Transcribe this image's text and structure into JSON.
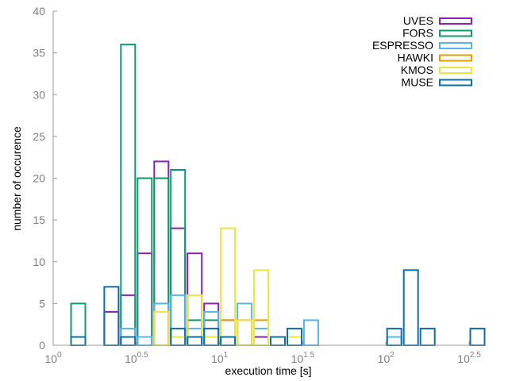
{
  "chart_data": {
    "type": "bar",
    "title": "",
    "xlabel": "execution time [s]",
    "ylabel": "number of occurence",
    "x_scale": "log10",
    "xlim_exponent": [
      0,
      2.6
    ],
    "ylim": [
      0,
      40
    ],
    "grid": false,
    "legend_position": "top-right",
    "x_ticks": [
      {
        "base": "10",
        "exp": "0",
        "value_exponent": 0
      },
      {
        "base": "10",
        "exp": "0.5",
        "value_exponent": 0.5
      },
      {
        "base": "10",
        "exp": "1",
        "value_exponent": 1
      },
      {
        "base": "10",
        "exp": "1.5",
        "value_exponent": 1.5
      },
      {
        "base": "10",
        "exp": "2",
        "value_exponent": 2
      },
      {
        "base": "10",
        "exp": "2.5",
        "value_exponent": 2.5
      }
    ],
    "y_ticks": [
      "0",
      "5",
      "10",
      "15",
      "20",
      "25",
      "30",
      "35",
      "40"
    ],
    "bin_edges_exponent": [
      0.1,
      0.2,
      0.3,
      0.4,
      0.5,
      0.6,
      0.7,
      0.8,
      0.9,
      1.0,
      1.1,
      1.2,
      1.3,
      1.4,
      1.5,
      1.6,
      1.7,
      1.8,
      1.9,
      2.0,
      2.1,
      2.2,
      2.3,
      2.4,
      2.5,
      2.6
    ],
    "series": [
      {
        "name": "UVES",
        "color": "#8e1fb3",
        "bins": [
          {
            "bin": 3,
            "count": 4
          },
          {
            "bin": 4,
            "count": 6
          },
          {
            "bin": 5,
            "count": 11
          },
          {
            "bin": 6,
            "count": 22
          },
          {
            "bin": 7,
            "count": 14
          },
          {
            "bin": 8,
            "count": 11
          },
          {
            "bin": 9,
            "count": 5
          },
          {
            "bin": 10,
            "count": 3
          },
          {
            "bin": 11,
            "count": 3
          },
          {
            "bin": 12,
            "count": 1
          }
        ]
      },
      {
        "name": "FORS",
        "color": "#0f9a6e",
        "bins": [
          {
            "bin": 1,
            "count": 5
          },
          {
            "bin": 4,
            "count": 36
          },
          {
            "bin": 5,
            "count": 20
          },
          {
            "bin": 6,
            "count": 20
          },
          {
            "bin": 7,
            "count": 21
          },
          {
            "bin": 8,
            "count": 3
          },
          {
            "bin": 9,
            "count": 3
          }
        ]
      },
      {
        "name": "ESPRESSO",
        "color": "#56b4e9",
        "bins": [
          {
            "bin": 4,
            "count": 2
          },
          {
            "bin": 5,
            "count": 1
          },
          {
            "bin": 6,
            "count": 5
          },
          {
            "bin": 7,
            "count": 6
          },
          {
            "bin": 8,
            "count": 2
          },
          {
            "bin": 9,
            "count": 4
          },
          {
            "bin": 10,
            "count": 1
          },
          {
            "bin": 11,
            "count": 5
          },
          {
            "bin": 12,
            "count": 2
          },
          {
            "bin": 15,
            "count": 3
          },
          {
            "bin": 20,
            "count": 1
          }
        ]
      },
      {
        "name": "HAWKI",
        "color": "#e69f00",
        "bins": [
          {
            "bin": 10,
            "count": 3
          },
          {
            "bin": 11,
            "count": 3
          },
          {
            "bin": 12,
            "count": 3
          }
        ]
      },
      {
        "name": "KMOS",
        "color": "#f0e442",
        "bins": [
          {
            "bin": 6,
            "count": 4
          },
          {
            "bin": 7,
            "count": 1
          },
          {
            "bin": 8,
            "count": 6
          },
          {
            "bin": 9,
            "count": 1
          },
          {
            "bin": 10,
            "count": 14
          },
          {
            "bin": 11,
            "count": 3
          },
          {
            "bin": 12,
            "count": 9
          },
          {
            "bin": 14,
            "count": 1
          }
        ]
      },
      {
        "name": "MUSE",
        "color": "#0d6fa6",
        "bins": [
          {
            "bin": 1,
            "count": 1
          },
          {
            "bin": 3,
            "count": 7
          },
          {
            "bin": 4,
            "count": 1
          },
          {
            "bin": 7,
            "count": 2
          },
          {
            "bin": 8,
            "count": 1
          },
          {
            "bin": 9,
            "count": 2
          },
          {
            "bin": 10,
            "count": 1
          },
          {
            "bin": 13,
            "count": 1
          },
          {
            "bin": 14,
            "count": 2
          },
          {
            "bin": 20,
            "count": 2
          },
          {
            "bin": 21,
            "count": 9
          },
          {
            "bin": 22,
            "count": 2
          },
          {
            "bin": 25,
            "count": 2
          }
        ]
      }
    ]
  }
}
